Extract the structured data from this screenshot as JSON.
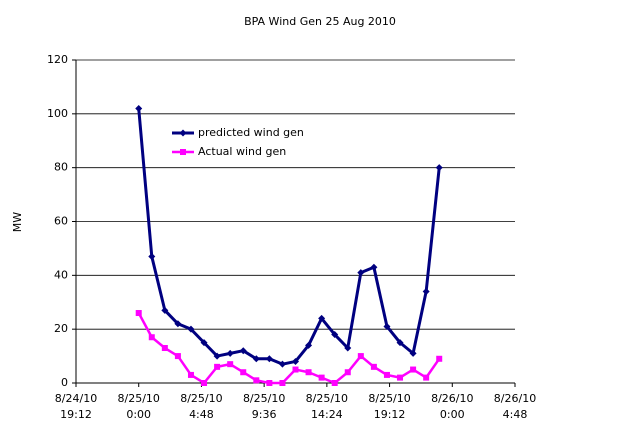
{
  "chart_data": {
    "type": "line",
    "title": "BPA Wind Gen 25 Aug 2010",
    "y_label": "MW",
    "x": [
      "8/25/10 0:00",
      "8/25/10 1:00",
      "8/25/10 2:00",
      "8/25/10 3:00",
      "8/25/10 4:00",
      "8/25/10 5:00",
      "8/25/10 6:00",
      "8/25/10 7:00",
      "8/25/10 8:00",
      "8/25/10 9:00",
      "8/25/10 10:00",
      "8/25/10 11:00",
      "8/25/10 12:00",
      "8/25/10 13:00",
      "8/25/10 14:00",
      "8/25/10 15:00",
      "8/25/10 16:00",
      "8/25/10 17:00",
      "8/25/10 18:00",
      "8/25/10 19:00",
      "8/25/10 20:00",
      "8/25/10 21:00",
      "8/25/10 22:00",
      "8/25/10 23:00"
    ],
    "series": [
      {
        "name": "predicted wind gen",
        "color": "#000080",
        "marker": "diamond",
        "values": [
          102,
          47,
          27,
          22,
          20,
          15,
          10,
          11,
          12,
          9,
          9,
          7,
          8,
          14,
          24,
          18,
          13,
          41,
          43,
          21,
          15,
          11,
          34,
          80
        ]
      },
      {
        "name": "Actual wind gen",
        "color": "#ff00ff",
        "marker": "square",
        "values": [
          26,
          17,
          13,
          10,
          3,
          0,
          6,
          7,
          4,
          1,
          0,
          0,
          5,
          4,
          2,
          0,
          4,
          10,
          6,
          3,
          2,
          5,
          2,
          9
        ]
      }
    ],
    "xlim": [
      "8/24/10 19:12",
      "8/26/10 4:48"
    ],
    "xticks": [
      "8/24/10 19:12",
      "8/25/10 0:00",
      "8/25/10 4:48",
      "8/25/10 9:36",
      "8/25/10 14:24",
      "8/25/10 19:12",
      "8/26/10 0:00",
      "8/26/10 4:48"
    ],
    "ylim": [
      0,
      120
    ],
    "yticks": [
      0,
      20,
      40,
      60,
      80,
      100,
      120
    ],
    "grid": true,
    "legend": "upper left"
  }
}
